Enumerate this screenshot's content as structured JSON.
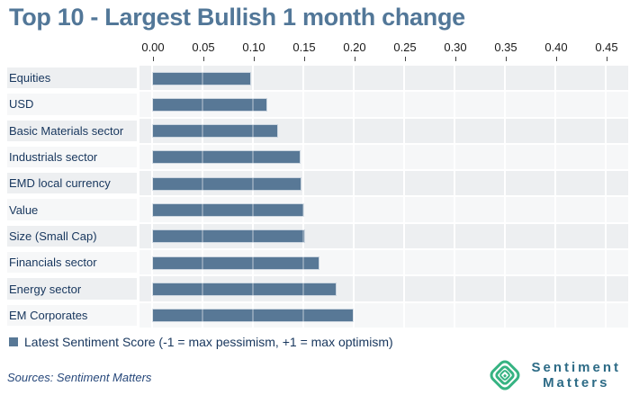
{
  "colors": {
    "bar": "#587896",
    "bar_border": "#ccd6e0",
    "title": "#527798",
    "label": "#17365d",
    "band_odd": "#edeff1",
    "band_even": "#f6f7f8",
    "axis_text": "#1a1a1a",
    "tick": "#444444",
    "sources": "#26477a",
    "logo_green": "#36b382",
    "logo_text": "#2d6b86"
  },
  "chart_data": {
    "type": "bar",
    "orientation": "horizontal",
    "title": "Top 10 - Largest Bullish 1 month change",
    "categories": [
      "Equities",
      "USD",
      "Basic Materials sector",
      "Industrials sector",
      "EMD local currency",
      "Value",
      "Size (Small Cap)",
      "Financials sector",
      "Energy sector",
      "EM Corporates"
    ],
    "series": [
      {
        "name": "Latest Sentiment Score (-1 = max pessimism, +1 = max optimism)",
        "values": [
          0.098,
          0.114,
          0.125,
          0.147,
          0.148,
          0.151,
          0.152,
          0.166,
          0.183,
          0.2
        ]
      }
    ],
    "xlabel": "",
    "ylabel": "",
    "xlim": [
      0,
      0.4725
    ],
    "xticks": [
      0.0,
      0.05,
      0.1,
      0.15,
      0.2,
      0.25,
      0.3,
      0.35,
      0.4,
      0.45
    ],
    "xtick_labels": [
      "0.00",
      "0.05",
      "0.10",
      "0.15",
      "0.20",
      "0.25",
      "0.30",
      "0.35",
      "0.40",
      "0.45"
    ],
    "grid": true,
    "row_stripes": true,
    "legend_position": "bottom-left"
  },
  "footer": {
    "sources": "Sources: Sentiment Matters",
    "logo": {
      "line1": "Sentiment",
      "line2": "Matters"
    }
  }
}
